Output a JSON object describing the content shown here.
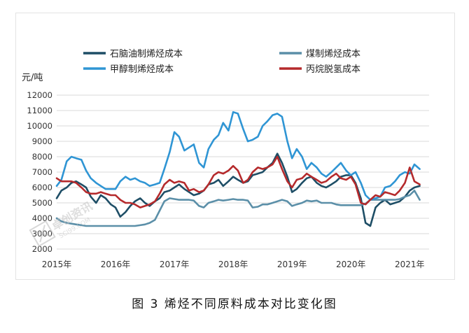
{
  "caption": "图 3 烯烃不同原料成本对比变化图",
  "chart_data": {
    "type": "line",
    "title": "",
    "xlabel": "",
    "ylabel": "元/吨",
    "ylim": [
      2000,
      12000
    ],
    "y_ticks": [
      2000,
      3000,
      4000,
      5000,
      6000,
      7000,
      8000,
      9000,
      10000,
      11000,
      12000
    ],
    "x_ticks": [
      "2015年",
      "2016年",
      "2017年",
      "2018年",
      "2019年",
      "2020年",
      "2021年"
    ],
    "xlim": [
      2015.0,
      2021.33
    ],
    "grid": true,
    "legend_position": "top",
    "series": [
      {
        "name": "石脑油制烯烃成本",
        "color": "#1e4e66",
        "x": [
          2015.0,
          2015.08,
          2015.17,
          2015.25,
          2015.33,
          2015.42,
          2015.5,
          2015.58,
          2015.67,
          2015.75,
          2015.83,
          2015.92,
          2016.0,
          2016.08,
          2016.17,
          2016.25,
          2016.33,
          2016.42,
          2016.5,
          2016.58,
          2016.67,
          2016.75,
          2016.83,
          2016.92,
          2017.0,
          2017.08,
          2017.17,
          2017.25,
          2017.33,
          2017.42,
          2017.5,
          2017.58,
          2017.67,
          2017.75,
          2017.83,
          2017.92,
          2018.0,
          2018.08,
          2018.17,
          2018.25,
          2018.33,
          2018.42,
          2018.5,
          2018.58,
          2018.67,
          2018.75,
          2018.83,
          2018.92,
          2019.0,
          2019.08,
          2019.17,
          2019.25,
          2019.33,
          2019.42,
          2019.5,
          2019.58,
          2019.67,
          2019.75,
          2019.83,
          2019.92,
          2020.0,
          2020.08,
          2020.17,
          2020.25,
          2020.33,
          2020.42,
          2020.5,
          2020.58,
          2020.67,
          2020.75,
          2020.83,
          2020.92,
          2021.0,
          2021.08,
          2021.17
        ],
        "values": [
          5300,
          5800,
          6000,
          6300,
          6400,
          6200,
          6000,
          5400,
          5000,
          5500,
          5300,
          4900,
          4700,
          4100,
          4400,
          4800,
          5100,
          5300,
          5000,
          4800,
          5100,
          5300,
          5700,
          5800,
          6000,
          6200,
          5900,
          5700,
          5500,
          5600,
          5800,
          6200,
          6300,
          6500,
          6100,
          6400,
          6700,
          6500,
          6300,
          6400,
          6800,
          6900,
          7000,
          7300,
          7600,
          8200,
          7600,
          6700,
          5700,
          5900,
          6300,
          6600,
          6700,
          6300,
          6100,
          6000,
          6200,
          6400,
          6700,
          6800,
          6800,
          6300,
          5300,
          3700,
          3500,
          4700,
          5000,
          5200,
          4900,
          5000,
          5100,
          5400,
          5800,
          6000,
          6100
        ]
      },
      {
        "name": "煤制烯烃成本",
        "color": "#5b8fa8",
        "x": [
          2015.0,
          2015.08,
          2015.17,
          2015.25,
          2015.33,
          2015.42,
          2015.5,
          2015.58,
          2015.67,
          2015.75,
          2015.83,
          2015.92,
          2016.0,
          2016.08,
          2016.17,
          2016.25,
          2016.33,
          2016.42,
          2016.5,
          2016.58,
          2016.67,
          2016.75,
          2016.83,
          2016.92,
          2017.0,
          2017.08,
          2017.17,
          2017.25,
          2017.33,
          2017.42,
          2017.5,
          2017.58,
          2017.67,
          2017.75,
          2017.83,
          2017.92,
          2018.0,
          2018.08,
          2018.17,
          2018.25,
          2018.33,
          2018.42,
          2018.5,
          2018.58,
          2018.67,
          2018.75,
          2018.83,
          2018.92,
          2019.0,
          2019.08,
          2019.17,
          2019.25,
          2019.33,
          2019.42,
          2019.5,
          2019.58,
          2019.67,
          2019.75,
          2019.83,
          2019.92,
          2020.0,
          2020.08,
          2020.17,
          2020.25,
          2020.33,
          2020.42,
          2020.5,
          2020.58,
          2020.67,
          2020.75,
          2020.83,
          2020.92,
          2021.0,
          2021.08,
          2021.17
        ],
        "values": [
          4000,
          3800,
          3700,
          3650,
          3600,
          3550,
          3500,
          3500,
          3500,
          3500,
          3500,
          3500,
          3500,
          3500,
          3500,
          3500,
          3500,
          3550,
          3600,
          3700,
          3900,
          4500,
          5100,
          5300,
          5250,
          5200,
          5200,
          5200,
          5150,
          4800,
          4700,
          5000,
          5100,
          5200,
          5150,
          5200,
          5250,
          5200,
          5200,
          5150,
          4700,
          4750,
          4900,
          4900,
          5000,
          5100,
          5200,
          5100,
          4800,
          4900,
          5000,
          5150,
          5100,
          5150,
          5000,
          5000,
          5000,
          4900,
          4850,
          4850,
          4850,
          4850,
          4850,
          4950,
          5200,
          5200,
          5200,
          5200,
          5200,
          5200,
          5250,
          5400,
          5500,
          5800,
          5200
        ]
      },
      {
        "name": "甲醇制烯烃成本",
        "color": "#2f95d4",
        "x": [
          2015.0,
          2015.08,
          2015.17,
          2015.25,
          2015.33,
          2015.42,
          2015.5,
          2015.58,
          2015.67,
          2015.75,
          2015.83,
          2015.92,
          2016.0,
          2016.08,
          2016.17,
          2016.25,
          2016.33,
          2016.42,
          2016.5,
          2016.58,
          2016.67,
          2016.75,
          2016.83,
          2016.92,
          2017.0,
          2017.08,
          2017.17,
          2017.25,
          2017.33,
          2017.42,
          2017.5,
          2017.58,
          2017.67,
          2017.75,
          2017.83,
          2017.92,
          2018.0,
          2018.08,
          2018.17,
          2018.25,
          2018.33,
          2018.42,
          2018.5,
          2018.58,
          2018.67,
          2018.75,
          2018.83,
          2018.92,
          2019.0,
          2019.08,
          2019.17,
          2019.25,
          2019.33,
          2019.42,
          2019.5,
          2019.58,
          2019.67,
          2019.75,
          2019.83,
          2019.92,
          2020.0,
          2020.08,
          2020.17,
          2020.25,
          2020.33,
          2020.42,
          2020.5,
          2020.58,
          2020.67,
          2020.75,
          2020.83,
          2020.92,
          2021.0,
          2021.08,
          2021.17
        ],
        "values": [
          6100,
          6500,
          7700,
          8000,
          7900,
          7800,
          7100,
          6600,
          6300,
          6100,
          5900,
          5900,
          5900,
          6400,
          6700,
          6500,
          6600,
          6400,
          6300,
          6100,
          6200,
          6300,
          7200,
          8300,
          9600,
          9300,
          8400,
          8600,
          8800,
          7600,
          7300,
          8500,
          9100,
          9400,
          10200,
          9700,
          10900,
          10800,
          9800,
          9000,
          9100,
          9300,
          10000,
          10300,
          10700,
          10800,
          10600,
          9000,
          7900,
          8500,
          8000,
          7200,
          7600,
          7300,
          6900,
          6700,
          7000,
          7300,
          7600,
          7100,
          6800,
          7000,
          6300,
          5500,
          5200,
          5300,
          5400,
          6000,
          6100,
          6400,
          6800,
          7000,
          6900,
          7500,
          7200
        ]
      },
      {
        "name": "丙烷脱氢成本",
        "color": "#b52a2c",
        "x": [
          2015.0,
          2015.08,
          2015.17,
          2015.25,
          2015.33,
          2015.42,
          2015.5,
          2015.58,
          2015.67,
          2015.75,
          2015.83,
          2015.92,
          2016.0,
          2016.08,
          2016.17,
          2016.25,
          2016.33,
          2016.42,
          2016.5,
          2016.58,
          2016.67,
          2016.75,
          2016.83,
          2016.92,
          2017.0,
          2017.08,
          2017.17,
          2017.25,
          2017.33,
          2017.42,
          2017.5,
          2017.58,
          2017.67,
          2017.75,
          2017.83,
          2017.92,
          2018.0,
          2018.08,
          2018.17,
          2018.25,
          2018.33,
          2018.42,
          2018.5,
          2018.58,
          2018.67,
          2018.75,
          2018.83,
          2018.92,
          2019.0,
          2019.08,
          2019.17,
          2019.25,
          2019.33,
          2019.42,
          2019.5,
          2019.58,
          2019.67,
          2019.75,
          2019.83,
          2019.92,
          2020.0,
          2020.08,
          2020.17,
          2020.25,
          2020.33,
          2020.42,
          2020.5,
          2020.58,
          2020.67,
          2020.75,
          2020.83,
          2020.92,
          2021.0,
          2021.08,
          2021.17
        ],
        "values": [
          6600,
          6400,
          6400,
          6400,
          6300,
          6000,
          5700,
          5600,
          5600,
          5700,
          5600,
          5500,
          5500,
          5200,
          5000,
          5000,
          4900,
          4700,
          4800,
          4900,
          5100,
          5600,
          6200,
          6500,
          6300,
          6400,
          6300,
          5800,
          5900,
          5700,
          5800,
          6200,
          6800,
          7000,
          6900,
          7100,
          7400,
          7100,
          6300,
          6500,
          7000,
          7300,
          7200,
          7300,
          7500,
          8000,
          7200,
          6400,
          6000,
          6500,
          6600,
          6900,
          6700,
          6500,
          6300,
          6400,
          6700,
          6900,
          6600,
          6500,
          6700,
          6200,
          5000,
          4900,
          5200,
          5500,
          5400,
          5700,
          5600,
          5500,
          5800,
          6300,
          7300,
          6400,
          6200
        ]
      }
    ]
  }
}
